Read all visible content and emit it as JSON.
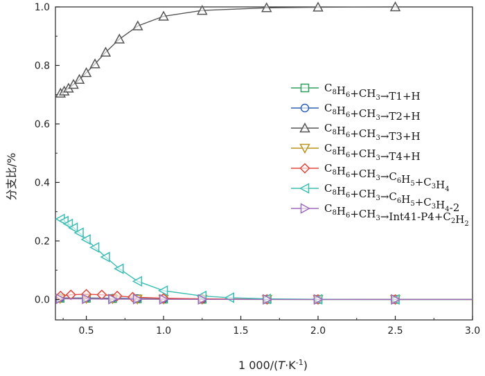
{
  "chart_data": {
    "type": "line",
    "title": "",
    "xlabel": "1 000/(T·K⁻¹)",
    "xlabel_parts": {
      "prefix": "1 000/(",
      "var": "T",
      "mid": "·K",
      "sup": "-1",
      "suffix": ")"
    },
    "ylabel": "分支比/%",
    "xlim": [
      0.3,
      3.0
    ],
    "ylim": [
      -0.07,
      1.0
    ],
    "xticks": [
      0.5,
      1.0,
      1.5,
      2.0,
      2.5,
      3.0
    ],
    "xtick_labels": [
      "0.5",
      "1.0",
      "1.5",
      "2.0",
      "2.5",
      "3.0"
    ],
    "yticks": [
      0.0,
      0.2,
      0.4,
      0.6,
      0.8,
      1.0
    ],
    "ytick_labels": [
      "0.0",
      "0.2",
      "0.4",
      "0.6",
      "0.8",
      "1.0"
    ],
    "grid": false,
    "legend_position": "right",
    "series": [
      {
        "name": "C8H6+CH3→T1+H",
        "legend_parts": [
          [
            "C",
            ""
          ],
          [
            "8",
            "sub"
          ],
          [
            "H",
            ""
          ],
          [
            "6",
            "sub"
          ],
          [
            "+CH",
            ""
          ],
          [
            "3",
            "sub"
          ],
          [
            "→T1+H",
            ""
          ]
        ],
        "color": "#2e9e5b",
        "marker": "square",
        "x": [
          0.33,
          0.5,
          0.67,
          0.83,
          1.0,
          1.25,
          1.67,
          2.0,
          2.5
        ],
        "values": [
          0.004,
          0.004,
          0.003,
          0.002,
          0.001,
          0.0005,
          0.0002,
          0.0001,
          0.0
        ]
      },
      {
        "name": "C8H6+CH3→T2+H",
        "legend_parts": [
          [
            "C",
            ""
          ],
          [
            "8",
            "sub"
          ],
          [
            "H",
            ""
          ],
          [
            "6",
            "sub"
          ],
          [
            "+CH",
            ""
          ],
          [
            "3",
            "sub"
          ],
          [
            "→T2+H",
            ""
          ]
        ],
        "color": "#2b5fb3",
        "marker": "circle",
        "x": [
          0.33,
          0.5,
          0.67,
          0.83,
          1.0,
          1.25,
          1.67,
          2.0,
          2.5
        ],
        "values": [
          0.005,
          0.005,
          0.004,
          0.003,
          0.002,
          0.001,
          0.0003,
          0.0001,
          0.0
        ]
      },
      {
        "name": "C8H6+CH3→T3+H",
        "legend_parts": [
          [
            "C",
            ""
          ],
          [
            "8",
            "sub"
          ],
          [
            "H",
            ""
          ],
          [
            "6",
            "sub"
          ],
          [
            "+CH",
            ""
          ],
          [
            "3",
            "sub"
          ],
          [
            "→T3+H",
            ""
          ]
        ],
        "color": "#555555",
        "marker": "triangle-up",
        "x": [
          0.333,
          0.357,
          0.385,
          0.417,
          0.455,
          0.5,
          0.556,
          0.625,
          0.714,
          0.833,
          1.0,
          1.25,
          1.667,
          2.0,
          2.5,
          3.0
        ],
        "values": [
          0.705,
          0.712,
          0.722,
          0.735,
          0.752,
          0.775,
          0.805,
          0.845,
          0.89,
          0.935,
          0.968,
          0.988,
          0.997,
          0.999,
          1.0,
          1.0
        ]
      },
      {
        "name": "C8H6+CH3→T4+H",
        "legend_parts": [
          [
            "C",
            ""
          ],
          [
            "8",
            "sub"
          ],
          [
            "H",
            ""
          ],
          [
            "6",
            "sub"
          ],
          [
            "+CH",
            ""
          ],
          [
            "3",
            "sub"
          ],
          [
            "→T4+H",
            ""
          ]
        ],
        "color": "#b8941f",
        "marker": "triangle-down",
        "x": [
          0.33,
          0.5,
          0.67,
          0.83,
          1.0,
          1.25,
          1.67,
          2.0,
          2.5
        ],
        "values": [
          0.003,
          0.003,
          0.002,
          0.001,
          0.001,
          0.0004,
          0.0001,
          0.0,
          0.0
        ]
      },
      {
        "name": "C8H6+CH3→C6H5+C3H4",
        "legend_parts": [
          [
            "C",
            ""
          ],
          [
            "8",
            "sub"
          ],
          [
            "H",
            ""
          ],
          [
            "6",
            "sub"
          ],
          [
            "+CH",
            ""
          ],
          [
            "3",
            "sub"
          ],
          [
            "→C",
            ""
          ],
          [
            "6",
            "sub"
          ],
          [
            "H",
            ""
          ],
          [
            "5",
            "sub"
          ],
          [
            "+C",
            ""
          ],
          [
            "3",
            "sub"
          ],
          [
            "H",
            ""
          ],
          [
            "4",
            "sub"
          ]
        ],
        "color": "#e0463c",
        "marker": "diamond",
        "x": [
          0.333,
          0.4,
          0.5,
          0.6,
          0.7,
          0.8,
          1.0,
          1.25,
          1.67,
          2.0,
          2.5
        ],
        "values": [
          0.012,
          0.016,
          0.018,
          0.016,
          0.012,
          0.008,
          0.004,
          0.002,
          0.0005,
          0.0002,
          0.0
        ]
      },
      {
        "name": "C8H6+CH3→C6H5+C3H4-2",
        "legend_parts": [
          [
            "C",
            ""
          ],
          [
            "8",
            "sub"
          ],
          [
            "H",
            ""
          ],
          [
            "6",
            "sub"
          ],
          [
            "+CH",
            ""
          ],
          [
            "3",
            "sub"
          ],
          [
            "→C",
            ""
          ],
          [
            "6",
            "sub"
          ],
          [
            "H",
            ""
          ],
          [
            "5",
            "sub"
          ],
          [
            "+C",
            ""
          ],
          [
            "3",
            "sub"
          ],
          [
            "H",
            ""
          ],
          [
            "4",
            "sub"
          ],
          [
            "-2",
            ""
          ]
        ],
        "color": "#3bbdb4",
        "marker": "triangle-left",
        "x": [
          0.333,
          0.357,
          0.385,
          0.417,
          0.455,
          0.5,
          0.556,
          0.625,
          0.714,
          0.833,
          1.0,
          1.25,
          1.429,
          1.667,
          2.0,
          2.5
        ],
        "values": [
          0.275,
          0.268,
          0.258,
          0.245,
          0.228,
          0.205,
          0.178,
          0.145,
          0.105,
          0.062,
          0.03,
          0.012,
          0.006,
          0.002,
          0.0005,
          0.0
        ]
      },
      {
        "name": "C8H6+CH3→Int41-P4+C2H2",
        "legend_parts": [
          [
            "C",
            ""
          ],
          [
            "8",
            "sub"
          ],
          [
            "H",
            ""
          ],
          [
            "6",
            "sub"
          ],
          [
            "+CH",
            ""
          ],
          [
            "3",
            "sub"
          ],
          [
            "→Int41-P4+C",
            ""
          ],
          [
            "2",
            "sub"
          ],
          [
            "H",
            ""
          ],
          [
            "2",
            "sub"
          ]
        ],
        "color": "#9b6ab8",
        "marker": "triangle-right",
        "x": [
          0.33,
          0.5,
          0.67,
          0.83,
          1.0,
          1.25,
          1.67,
          2.0,
          2.5
        ],
        "values": [
          0.002,
          0.002,
          0.001,
          0.001,
          0.0005,
          0.0002,
          0.0001,
          0.0,
          0.0
        ]
      }
    ]
  }
}
